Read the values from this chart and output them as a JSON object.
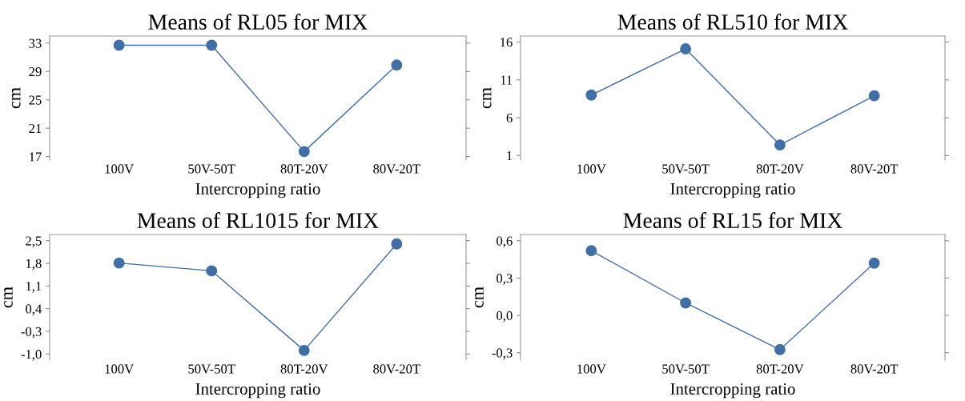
{
  "chart_data": [
    {
      "type": "line",
      "title": "Means of RL05 for MIX",
      "xlabel": "Intercropping ratio",
      "ylabel": "cm",
      "categories": [
        "100V",
        "50V-50T",
        "80T-20V",
        "80V-20T"
      ],
      "series": [
        {
          "color": "#3f6fa6",
          "values": [
            32.7,
            32.7,
            17.7,
            29.9
          ]
        }
      ],
      "ylim": [
        16.5,
        34
      ],
      "yticks": [
        17,
        21,
        25,
        29,
        33
      ],
      "marker": "circle",
      "grid": false,
      "legend": false
    },
    {
      "type": "line",
      "title": "Means of RL510 for MIX",
      "xlabel": "Intercropping ratio",
      "ylabel": "cm",
      "categories": [
        "100V",
        "50V-50T",
        "80T-20V",
        "80V-20T"
      ],
      "series": [
        {
          "color": "#3f6fa6",
          "values": [
            9.0,
            15.1,
            2.4,
            8.9
          ]
        }
      ],
      "ylim": [
        0.4,
        16.8
      ],
      "yticks": [
        1,
        6,
        11,
        16
      ],
      "marker": "circle",
      "grid": false,
      "legend": false
    },
    {
      "type": "line",
      "title": "Means of RL1015 for MIX",
      "xlabel": "Intercropping ratio",
      "ylabel": "cm",
      "categories": [
        "100V",
        "50V-50T",
        "80T-20V",
        "80V-20T"
      ],
      "series": [
        {
          "color": "#3f6fa6",
          "values": [
            1.81,
            1.57,
            -0.89,
            2.4
          ]
        }
      ],
      "ylim": [
        -1.19,
        2.69
      ],
      "yticks": [
        {
          "value": -1.0,
          "label": "-1,0"
        },
        {
          "value": -0.3,
          "label": "-0,3"
        },
        {
          "value": 0.4,
          "label": "0,4"
        },
        {
          "value": 1.1,
          "label": "1,1"
        },
        {
          "value": 1.8,
          "label": "1,8"
        },
        {
          "value": 2.5,
          "label": "2,5"
        }
      ],
      "marker": "circle",
      "grid": false,
      "legend": false
    },
    {
      "type": "line",
      "title": "Means of RL15 for MIX",
      "xlabel": "Intercropping ratio",
      "ylabel": "cm",
      "categories": [
        "100V",
        "50V-50T",
        "80T-20V",
        "80V-20T"
      ],
      "series": [
        {
          "color": "#3f6fa6",
          "values": [
            0.52,
            0.1,
            -0.275,
            0.42
          ]
        }
      ],
      "ylim": [
        -0.36,
        0.65
      ],
      "yticks": [
        {
          "value": -0.3,
          "label": "-0,3"
        },
        {
          "value": 0.0,
          "label": "0,0"
        },
        {
          "value": 0.3,
          "label": "0,3"
        },
        {
          "value": 0.6,
          "label": "0,6"
        }
      ],
      "marker": "circle",
      "grid": false,
      "legend": false
    }
  ]
}
